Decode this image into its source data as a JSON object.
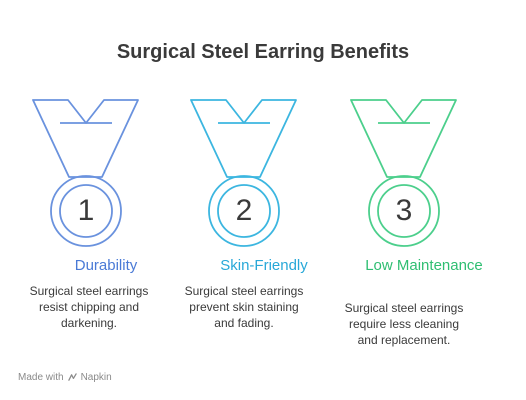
{
  "title": "Surgical Steel Earring Benefits",
  "colors": {
    "blue": "#6a92de",
    "cyan": "#3cb6e0",
    "green": "#4ccf8c",
    "text": "#3a3a3a"
  },
  "items": [
    {
      "number": "1",
      "heading": "Durability",
      "description": "Surgical steel earrings resist chipping and darkening.",
      "color": "#6a92de",
      "heading_color": "#4a7ad6"
    },
    {
      "number": "2",
      "heading": "Skin-Friendly",
      "description": "Surgical steel earrings prevent skin staining and fading.",
      "color": "#3cb6e0",
      "heading_color": "#28a8d8"
    },
    {
      "number": "3",
      "heading": "Low Maintenance",
      "description": "Surgical steel earrings require less cleaning and replacement.",
      "color": "#4ccf8c",
      "heading_color": "#2fbe72"
    }
  ],
  "footer": {
    "made_with": "Made with",
    "brand": "Napkin",
    "brand_icon": "napkin-logo-icon"
  }
}
